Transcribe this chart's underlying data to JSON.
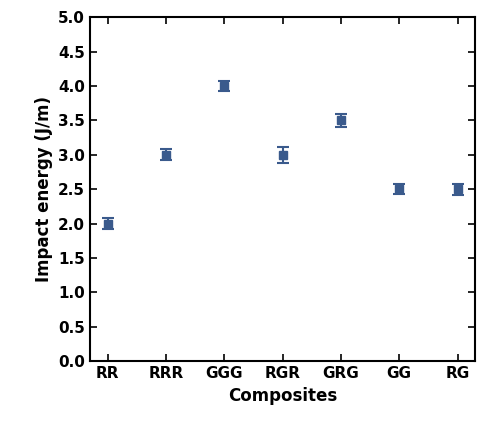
{
  "categories": [
    "RR",
    "RRR",
    "GGG",
    "RGR",
    "GRG",
    "GG",
    "RG"
  ],
  "values": [
    2.0,
    3.0,
    4.0,
    3.0,
    3.5,
    2.5,
    2.5
  ],
  "errors": [
    0.08,
    0.08,
    0.07,
    0.12,
    0.1,
    0.07,
    0.08
  ],
  "marker_color": "#3a5a8c",
  "marker_face_color": "#3a5a8c",
  "marker_style": "s",
  "marker_size": 6,
  "line_color": "#3a5a8c",
  "xlabel": "Composites",
  "ylabel": "Impact energy (J/m)",
  "ylim": [
    0.0,
    5.0
  ],
  "yticks": [
    0.0,
    0.5,
    1.0,
    1.5,
    2.0,
    2.5,
    3.0,
    3.5,
    4.0,
    4.5,
    5.0
  ],
  "xlabel_fontsize": 12,
  "ylabel_fontsize": 12,
  "tick_fontsize": 11,
  "background_color": "#ffffff",
  "capsize": 4,
  "elinewidth": 1.5,
  "capthick": 1.5,
  "spine_linewidth": 1.5
}
